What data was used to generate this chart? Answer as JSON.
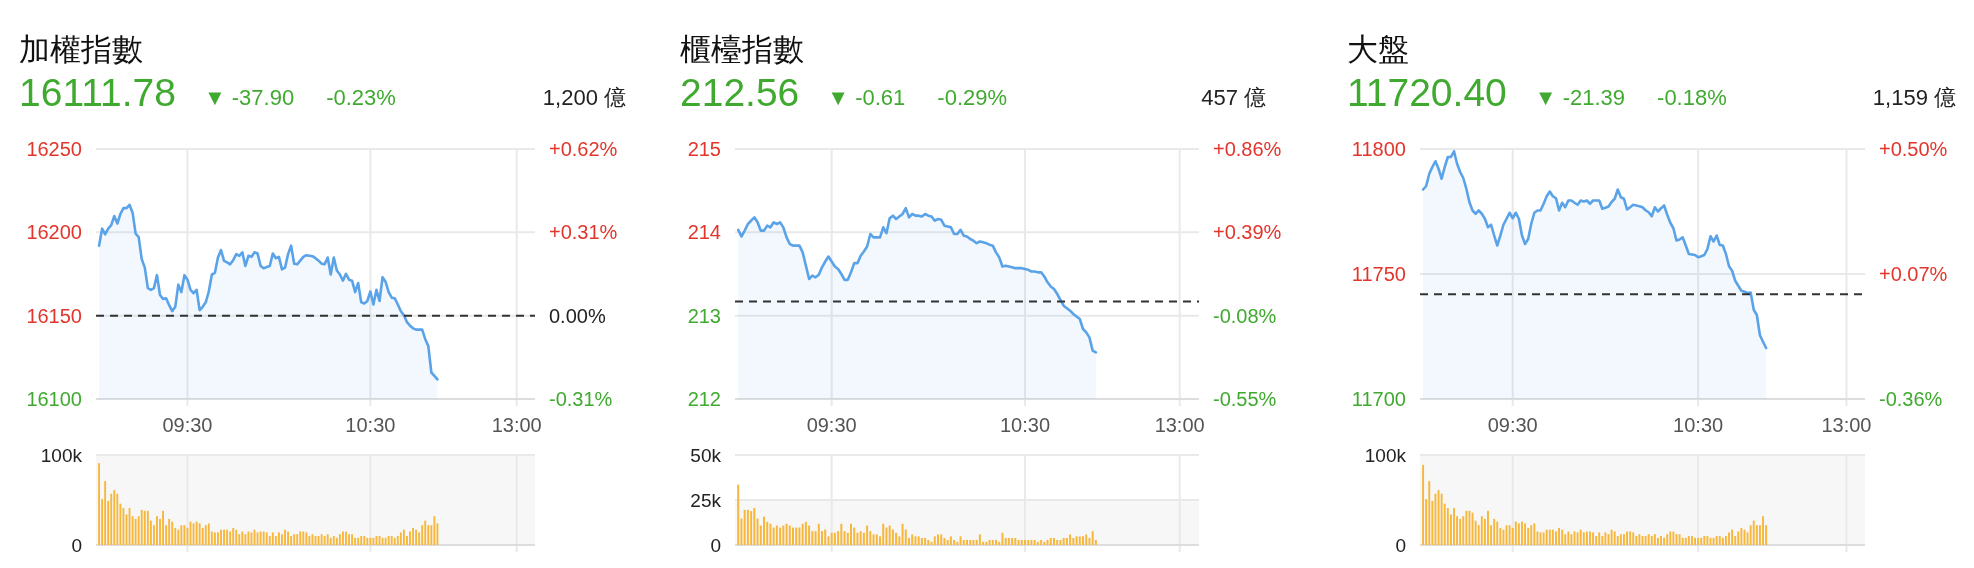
{
  "chart_data": [
    {
      "type": "area",
      "title": "加權指數",
      "annotations": [
        "16111.78",
        "▼ -37.90",
        "-0.23%",
        "1,200 億"
      ],
      "categories": [
        null,
        null,
        null,
        null,
        null,
        null,
        null,
        null,
        null,
        null,
        null,
        null,
        null,
        null,
        null,
        null,
        null,
        null,
        null,
        null,
        null,
        null,
        null,
        null,
        null,
        null,
        null,
        null,
        null,
        null,
        "09:30",
        null,
        null,
        null,
        null,
        null,
        null,
        null,
        null,
        null,
        null,
        null,
        null,
        null,
        null,
        null,
        null,
        null,
        null,
        null,
        null,
        null,
        null,
        null,
        null,
        null,
        null,
        null,
        null,
        null,
        null,
        null,
        null,
        null,
        null,
        null,
        null,
        null,
        null,
        null,
        null,
        null,
        null,
        null,
        null,
        null,
        null,
        null,
        null,
        null,
        null,
        null,
        null,
        null,
        null,
        null,
        null,
        null,
        null,
        null,
        "10:30",
        null,
        null,
        null,
        null,
        null,
        null,
        null,
        null,
        null,
        null,
        null,
        null,
        null,
        null,
        null,
        null,
        null,
        null,
        null,
        null,
        null,
        null,
        null,
        null,
        null,
        null,
        null,
        null,
        null,
        null,
        null,
        null,
        null,
        null,
        null,
        null,
        null,
        null,
        null,
        null,
        null,
        null,
        null,
        null,
        null,
        null,
        null,
        "13:00",
        null,
        null,
        null,
        null,
        null,
        null
      ],
      "values": [
        null,
        16192.0,
        16202.2,
        16198.8,
        16202.2,
        16204.3,
        16209.8,
        16205.3,
        16211.0,
        16214.5,
        16214.5,
        16216.5,
        16211.8,
        16199.2,
        16197.1,
        16183.9,
        16178.8,
        16166.5,
        16165.5,
        16166.5,
        16174.3,
        16162.4,
        16160.0,
        16160.4,
        16156.3,
        16152.7,
        16155.3,
        16168.6,
        16164.1,
        16174.3,
        16171.6,
        16165.5,
        16163.5,
        16165.5,
        16153.3,
        16155.3,
        16158.0,
        16164.5,
        16174.7,
        16175.7,
        16184.9,
        16189.4,
        16182.9,
        16182.0,
        16180.8,
        16183.3,
        16186.9,
        16185.9,
        16188.0,
        16179.8,
        16185.9,
        16185.3,
        16188.0,
        16187.3,
        16179.8,
        16178.4,
        16179.2,
        16179.8,
        16187.3,
        16184.5,
        16185.3,
        16177.8,
        16178.8,
        16186.9,
        16192.0,
        16181.2,
        16180.8,
        16183.0,
        16185.3,
        16186.3,
        16186.0,
        16185.7,
        16184.5,
        16183.0,
        16181.2,
        16180.8,
        16184.9,
        16174.7,
        16184.9,
        16177.1,
        16174.7,
        16171.0,
        16175.1,
        16171.6,
        16171.0,
        16164.1,
        16169.6,
        16158.0,
        16157.3,
        16158.8,
        16164.5,
        16156.7,
        16165.5,
        16158.8,
        16173.1,
        16170.2,
        16164.1,
        16160.8,
        16160.4,
        16156.7,
        16152.7,
        16150.2,
        16146.1,
        16144.0,
        16142.4,
        16141.6,
        16141.6,
        16141.6,
        16135.9,
        16131.8,
        16115.9,
        16113.9,
        16111.8,
        null,
        null,
        null,
        null,
        null,
        null,
        null,
        null,
        null,
        null,
        null,
        null,
        null,
        null,
        null,
        null,
        null,
        null,
        null,
        null,
        null,
        null,
        null,
        null,
        null,
        null,
        null,
        null,
        null,
        null,
        null,
        null
      ],
      "color": "#5ba3e8",
      "ylim": [
        16100,
        16250
      ],
      "yticks": [
        16100,
        16150,
        16200,
        16250
      ],
      "y2lim": [
        -0.31,
        0.62
      ],
      "y2ticks": [
        {
          "value": -0.31,
          "label": "-0.31%"
        },
        {
          "value": 0,
          "label": "0.00%"
        },
        {
          "value": 0.31,
          "label": "+0.31%"
        },
        {
          "value": 0.62,
          "label": "+0.62%"
        }
      ],
      "ref_lines": [
        {
          "axis": "y2",
          "value": 0,
          "color": "#333333",
          "line_style": "dashed"
        }
      ],
      "grid": true
    },
    {
      "type": "bar",
      "categories": [
        null,
        null,
        null,
        null,
        null,
        null,
        null,
        null,
        null,
        null,
        null,
        null,
        null,
        null,
        null,
        null,
        null,
        null,
        null,
        null,
        null,
        null,
        null,
        null,
        null,
        null,
        null,
        null,
        null,
        null,
        null,
        null,
        null,
        null,
        null,
        null,
        null,
        null,
        null,
        null,
        null,
        null,
        null,
        null,
        null,
        null,
        null,
        null,
        null,
        null,
        null,
        null,
        null,
        null,
        null,
        null,
        null,
        null,
        null,
        null,
        null,
        null,
        null,
        null,
        null,
        null,
        null,
        null,
        null,
        null,
        null,
        null,
        null,
        null,
        null,
        null,
        null,
        null,
        null,
        null,
        null,
        null,
        null,
        null,
        null,
        null,
        null,
        null,
        null,
        null,
        null,
        null,
        null,
        null,
        null,
        null,
        null,
        null,
        null,
        null,
        null,
        null,
        null,
        null,
        null,
        null,
        null,
        null,
        null,
        null,
        null,
        null,
        null,
        null,
        null,
        null,
        null,
        null,
        null,
        null,
        null,
        null,
        null,
        null,
        null,
        null,
        null,
        null,
        null,
        null,
        null,
        null,
        null,
        null,
        null,
        null,
        null,
        null,
        null,
        null,
        null,
        null,
        null,
        null,
        null
      ],
      "values": [
        null,
        91000,
        51000,
        71000,
        49000,
        57000,
        61000,
        57000,
        46000,
        41000,
        34000,
        41000,
        32000,
        29000,
        32000,
        39000,
        38000,
        38000,
        27000,
        22000,
        32000,
        29000,
        38000,
        22000,
        29000,
        26000,
        19000,
        17000,
        22000,
        22000,
        19000,
        26000,
        24000,
        26000,
        24000,
        19000,
        22000,
        24000,
        15000,
        14000,
        14000,
        17000,
        17000,
        17000,
        15000,
        19000,
        17000,
        12000,
        15000,
        12000,
        15000,
        14000,
        17000,
        14000,
        15000,
        15000,
        14000,
        10000,
        14000,
        10000,
        14000,
        12000,
        17000,
        15000,
        10000,
        12000,
        12000,
        15000,
        15000,
        14000,
        10000,
        12000,
        10000,
        10000,
        12000,
        10000,
        12000,
        8000,
        10000,
        8000,
        12000,
        15000,
        15000,
        12000,
        12000,
        8000,
        8000,
        10000,
        10000,
        8000,
        8000,
        8000,
        10000,
        10000,
        8000,
        8000,
        10000,
        10000,
        8000,
        10000,
        14000,
        17000,
        10000,
        15000,
        19000,
        17000,
        14000,
        22000,
        27000,
        22000,
        22000,
        32000,
        24000,
        null,
        null,
        null,
        null,
        null,
        null,
        null,
        null,
        null,
        null,
        null,
        null,
        null,
        null,
        null,
        null,
        null,
        null,
        null,
        null,
        null,
        null,
        null,
        null,
        null,
        null,
        null,
        null,
        null,
        null,
        null,
        null
      ],
      "color": "#f6b73c",
      "ylim": [
        0,
        100000
      ],
      "yticks": [
        0,
        {
          "value": 100000,
          "label": "100k"
        }
      ],
      "bands": [
        {
          "axis": "y",
          "from": 0,
          "to": 100000,
          "color": "#f7f7f7"
        }
      ],
      "grid": true
    },
    {
      "type": "area",
      "title": "櫃檯指數",
      "annotations": [
        "212.56",
        "▼ -0.61",
        "-0.29%",
        "457 億"
      ],
      "categories": [
        null,
        null,
        null,
        null,
        null,
        null,
        null,
        null,
        null,
        null,
        null,
        null,
        null,
        null,
        null,
        null,
        null,
        null,
        null,
        null,
        null,
        null,
        null,
        null,
        null,
        null,
        null,
        null,
        null,
        null,
        "09:30",
        null,
        null,
        null,
        null,
        null,
        null,
        null,
        null,
        null,
        null,
        null,
        null,
        null,
        null,
        null,
        null,
        null,
        null,
        null,
        null,
        null,
        null,
        null,
        null,
        null,
        null,
        null,
        null,
        null,
        null,
        null,
        null,
        null,
        null,
        null,
        null,
        null,
        null,
        null,
        null,
        null,
        null,
        null,
        null,
        null,
        null,
        null,
        null,
        null,
        null,
        null,
        null,
        null,
        null,
        null,
        null,
        null,
        null,
        null,
        "10:30",
        null,
        null,
        null,
        null,
        null,
        null,
        null,
        null,
        null,
        null,
        null,
        null,
        null,
        null,
        null,
        null,
        null,
        null,
        null,
        null,
        null,
        null,
        null,
        null,
        null,
        null,
        null,
        null,
        null,
        null,
        null,
        null,
        null,
        null,
        null,
        null,
        null,
        null,
        null,
        null,
        null,
        null,
        null,
        null,
        null,
        null,
        null,
        "13:00",
        null,
        null,
        null,
        null,
        null,
        null
      ],
      "values": [
        null,
        214.03,
        213.95,
        214.02,
        214.1,
        214.14,
        214.18,
        214.12,
        214.02,
        214.02,
        214.08,
        214.06,
        214.12,
        214.1,
        214.12,
        214.06,
        213.94,
        213.86,
        213.84,
        213.84,
        213.84,
        213.76,
        213.6,
        213.44,
        213.48,
        213.46,
        213.49,
        213.58,
        213.65,
        213.71,
        213.65,
        213.59,
        213.56,
        213.5,
        213.43,
        213.43,
        213.52,
        213.63,
        213.63,
        213.72,
        213.77,
        213.83,
        213.98,
        213.94,
        213.94,
        213.94,
        214.06,
        213.99,
        214.17,
        214.2,
        214.16,
        214.19,
        214.22,
        214.29,
        214.18,
        214.22,
        214.2,
        214.2,
        214.19,
        214.22,
        214.2,
        214.19,
        214.14,
        214.16,
        214.15,
        214.08,
        214.07,
        214.06,
        213.98,
        213.98,
        214.03,
        213.96,
        213.95,
        213.92,
        213.9,
        213.87,
        213.89,
        213.88,
        213.87,
        213.85,
        213.84,
        213.76,
        213.7,
        213.59,
        213.6,
        213.59,
        213.58,
        213.57,
        213.57,
        213.57,
        213.56,
        213.55,
        213.53,
        213.53,
        213.52,
        213.52,
        213.47,
        213.4,
        213.35,
        213.32,
        213.26,
        213.19,
        213.12,
        213.09,
        213.06,
        213.02,
        212.99,
        212.96,
        212.84,
        212.8,
        212.74,
        212.58,
        212.56,
        null,
        null,
        null,
        null,
        null,
        null,
        null,
        null,
        null,
        null,
        null,
        null,
        null,
        null,
        null,
        null,
        null,
        null,
        null,
        null,
        null,
        null,
        null,
        null,
        null,
        null,
        null,
        null,
        null,
        null,
        null,
        null
      ],
      "color": "#5ba3e8",
      "ylim": [
        212,
        215
      ],
      "yticks": [
        212,
        213,
        214,
        215
      ],
      "y2lim": [
        -0.55,
        0.86
      ],
      "y2ticks": [
        {
          "value": -0.55,
          "label": "-0.55%"
        },
        {
          "value": -0.08,
          "label": "-0.08%"
        },
        {
          "value": 0.39,
          "label": "+0.39%"
        },
        {
          "value": 0.86,
          "label": "+0.86%"
        }
      ],
      "ref_lines": [
        {
          "axis": "y2",
          "value": 0,
          "color": "#333333",
          "line_style": "dashed"
        }
      ],
      "grid": true
    },
    {
      "type": "bar",
      "categories": [
        null,
        null,
        null,
        null,
        null,
        null,
        null,
        null,
        null,
        null,
        null,
        null,
        null,
        null,
        null,
        null,
        null,
        null,
        null,
        null,
        null,
        null,
        null,
        null,
        null,
        null,
        null,
        null,
        null,
        null,
        null,
        null,
        null,
        null,
        null,
        null,
        null,
        null,
        null,
        null,
        null,
        null,
        null,
        null,
        null,
        null,
        null,
        null,
        null,
        null,
        null,
        null,
        null,
        null,
        null,
        null,
        null,
        null,
        null,
        null,
        null,
        null,
        null,
        null,
        null,
        null,
        null,
        null,
        null,
        null,
        null,
        null,
        null,
        null,
        null,
        null,
        null,
        null,
        null,
        null,
        null,
        null,
        null,
        null,
        null,
        null,
        null,
        null,
        null,
        null,
        null,
        null,
        null,
        null,
        null,
        null,
        null,
        null,
        null,
        null,
        null,
        null,
        null,
        null,
        null,
        null,
        null,
        null,
        null,
        null,
        null,
        null,
        null,
        null,
        null,
        null,
        null,
        null,
        null,
        null,
        null,
        null,
        null,
        null,
        null,
        null,
        null,
        null,
        null,
        null,
        null,
        null,
        null,
        null,
        null,
        null,
        null,
        null,
        null,
        null,
        null,
        null,
        null,
        null,
        null
      ],
      "values": [
        null,
        33500,
        14700,
        19500,
        19500,
        18800,
        20600,
        14700,
        10800,
        15800,
        12900,
        11800,
        9700,
        10800,
        9700,
        10800,
        11800,
        10800,
        9700,
        9700,
        9700,
        11800,
        12900,
        10800,
        7700,
        7700,
        11800,
        7700,
        8600,
        4800,
        6800,
        6800,
        7700,
        11800,
        7700,
        6800,
        11800,
        9700,
        6800,
        7700,
        6800,
        10800,
        7700,
        5900,
        5900,
        4800,
        11800,
        9700,
        10800,
        8600,
        6800,
        4800,
        11800,
        8600,
        3900,
        5900,
        4800,
        4800,
        3900,
        3900,
        2800,
        1800,
        4800,
        5900,
        5900,
        3900,
        2800,
        4800,
        2800,
        1800,
        4800,
        2800,
        2800,
        2800,
        2800,
        2800,
        5900,
        1800,
        1800,
        2800,
        2800,
        2800,
        1800,
        6800,
        3900,
        3900,
        3900,
        3900,
        2800,
        2800,
        2800,
        2800,
        2800,
        2800,
        1800,
        2800,
        1800,
        2800,
        3900,
        3900,
        2800,
        2800,
        3900,
        3900,
        5900,
        3900,
        4800,
        4800,
        4800,
        5900,
        3900,
        7700,
        2800,
        null,
        null,
        null,
        null,
        null,
        null,
        null,
        null,
        null,
        null,
        null,
        null,
        null,
        null,
        null,
        null,
        null,
        null,
        null,
        null,
        null,
        null,
        null,
        null,
        null,
        null,
        null,
        null,
        null,
        null,
        null,
        null
      ],
      "color": "#f6b73c",
      "ylim": [
        0,
        50000
      ],
      "yticks": [
        0,
        {
          "value": 25000,
          "label": "25k"
        },
        {
          "value": 50000,
          "label": "50k"
        }
      ],
      "bands": [
        {
          "axis": "y",
          "from": 0,
          "to": 25000,
          "color": "#f7f7f7"
        }
      ],
      "grid": true
    },
    {
      "type": "area",
      "title": "大盤",
      "annotations": [
        "11720.40",
        "▼ -21.39",
        "-0.18%",
        "1,159 億"
      ],
      "categories": [
        null,
        null,
        null,
        null,
        null,
        null,
        null,
        null,
        null,
        null,
        null,
        null,
        null,
        null,
        null,
        null,
        null,
        null,
        null,
        null,
        null,
        null,
        null,
        null,
        null,
        null,
        null,
        null,
        null,
        null,
        "09:30",
        null,
        null,
        null,
        null,
        null,
        null,
        null,
        null,
        null,
        null,
        null,
        null,
        null,
        null,
        null,
        null,
        null,
        null,
        null,
        null,
        null,
        null,
        null,
        null,
        null,
        null,
        null,
        null,
        null,
        null,
        null,
        null,
        null,
        null,
        null,
        null,
        null,
        null,
        null,
        null,
        null,
        null,
        null,
        null,
        null,
        null,
        null,
        null,
        null,
        null,
        null,
        null,
        null,
        null,
        null,
        null,
        null,
        null,
        null,
        "10:30",
        null,
        null,
        null,
        null,
        null,
        null,
        null,
        null,
        null,
        null,
        null,
        null,
        null,
        null,
        null,
        null,
        null,
        null,
        null,
        null,
        null,
        null,
        null,
        null,
        null,
        null,
        null,
        null,
        null,
        null,
        null,
        null,
        null,
        null,
        null,
        null,
        null,
        null,
        null,
        null,
        null,
        null,
        null,
        null,
        null,
        null,
        null,
        "13:00",
        null,
        null,
        null,
        null,
        null,
        null
      ],
      "values": [
        null,
        11783.8,
        11785.2,
        11790.1,
        11792.8,
        11795.1,
        11792.1,
        11788.1,
        11792.8,
        11796.8,
        11796.8,
        11799.1,
        11794.1,
        11790.8,
        11788.4,
        11784.1,
        11778.7,
        11775.4,
        11774.1,
        11775.4,
        11774.1,
        11772.1,
        11768.7,
        11769.7,
        11765.4,
        11761.4,
        11765.4,
        11769.7,
        11772.1,
        11774.5,
        11772.3,
        11774.5,
        11772.1,
        11765.4,
        11762.0,
        11764.0,
        11770.1,
        11774.5,
        11775.4,
        11775.4,
        11778.1,
        11781.1,
        11783.0,
        11781.1,
        11780.3,
        11775.4,
        11778.5,
        11776.7,
        11779.4,
        11779.4,
        11778.5,
        11777.7,
        11779.4,
        11779.0,
        11779.4,
        11778.1,
        11779.4,
        11779.4,
        11779.4,
        11776.1,
        11776.5,
        11777.0,
        11778.8,
        11780.1,
        11783.8,
        11780.7,
        11780.1,
        11775.8,
        11776.7,
        11777.7,
        11777.4,
        11777.1,
        11776.7,
        11775.5,
        11774.7,
        11773.1,
        11776.7,
        11775.0,
        11776.3,
        11777.4,
        11773.7,
        11770.5,
        11768.3,
        11763.4,
        11763.8,
        11764.7,
        11761.4,
        11758.0,
        11757.8,
        11757.6,
        11756.7,
        11757.1,
        11757.6,
        11760.0,
        11765.1,
        11763.0,
        11765.4,
        11761.6,
        11761.4,
        11758.0,
        11753.1,
        11751.3,
        11747.3,
        11745.3,
        11743.3,
        11742.9,
        11742.4,
        11742.6,
        11735.7,
        11733.6,
        11725.5,
        11722.9,
        11720.4,
        null,
        null,
        null,
        null,
        null,
        null,
        null,
        null,
        null,
        null,
        null,
        null,
        null,
        null,
        null,
        null,
        null,
        null,
        null,
        null,
        null,
        null,
        null,
        null,
        null,
        null,
        null,
        null,
        null,
        null,
        null,
        null
      ],
      "color": "#5ba3e8",
      "ylim": [
        11700,
        11800
      ],
      "yticks": [
        11700,
        11750,
        11800
      ],
      "y2lim": [
        -0.36,
        0.5
      ],
      "y2ticks": [
        {
          "value": -0.36,
          "label": "-0.36%"
        },
        {
          "value": 0.07,
          "label": "+0.07%"
        },
        {
          "value": 0.5,
          "label": "+0.50%"
        }
      ],
      "ref_lines": [
        {
          "axis": "y2",
          "value": 0,
          "color": "#333333",
          "line_style": "dashed"
        }
      ],
      "grid": true
    },
    {
      "type": "bar",
      "categories": [
        null,
        null,
        null,
        null,
        null,
        null,
        null,
        null,
        null,
        null,
        null,
        null,
        null,
        null,
        null,
        null,
        null,
        null,
        null,
        null,
        null,
        null,
        null,
        null,
        null,
        null,
        null,
        null,
        null,
        null,
        null,
        null,
        null,
        null,
        null,
        null,
        null,
        null,
        null,
        null,
        null,
        null,
        null,
        null,
        null,
        null,
        null,
        null,
        null,
        null,
        null,
        null,
        null,
        null,
        null,
        null,
        null,
        null,
        null,
        null,
        null,
        null,
        null,
        null,
        null,
        null,
        null,
        null,
        null,
        null,
        null,
        null,
        null,
        null,
        null,
        null,
        null,
        null,
        null,
        null,
        null,
        null,
        null,
        null,
        null,
        null,
        null,
        null,
        null,
        null,
        null,
        null,
        null,
        null,
        null,
        null,
        null,
        null,
        null,
        null,
        null,
        null,
        null,
        null,
        null,
        null,
        null,
        null,
        null,
        null,
        null,
        null,
        null,
        null,
        null,
        null,
        null,
        null,
        null,
        null,
        null,
        null,
        null,
        null,
        null,
        null,
        null,
        null,
        null,
        null,
        null,
        null,
        null,
        null,
        null,
        null,
        null,
        null,
        null,
        null,
        null,
        null,
        null,
        null,
        null
      ],
      "values": [
        null,
        89000,
        51000,
        71000,
        49000,
        57000,
        61000,
        57000,
        46000,
        41000,
        34000,
        41000,
        32000,
        29000,
        32000,
        38000,
        38000,
        36000,
        27000,
        22000,
        32000,
        29000,
        38000,
        22000,
        29000,
        26000,
        19000,
        17000,
        22000,
        22000,
        19000,
        26000,
        24000,
        26000,
        24000,
        19000,
        22000,
        24000,
        15000,
        14000,
        14000,
        17000,
        17000,
        17000,
        15000,
        19000,
        17000,
        12000,
        15000,
        12000,
        15000,
        14000,
        17000,
        14000,
        15000,
        15000,
        14000,
        10000,
        14000,
        10000,
        14000,
        12000,
        17000,
        15000,
        10000,
        12000,
        12000,
        15000,
        15000,
        14000,
        10000,
        12000,
        10000,
        10000,
        12000,
        10000,
        12000,
        8000,
        10000,
        8000,
        12000,
        15000,
        15000,
        12000,
        12000,
        8000,
        8000,
        10000,
        10000,
        8000,
        8000,
        8000,
        10000,
        10000,
        8000,
        8000,
        10000,
        10000,
        8000,
        10000,
        14000,
        17000,
        10000,
        15000,
        19000,
        17000,
        14000,
        22000,
        27000,
        22000,
        22000,
        32000,
        22000,
        null,
        null,
        null,
        null,
        null,
        null,
        null,
        null,
        null,
        null,
        null,
        null,
        null,
        null,
        null,
        null,
        null,
        null,
        null,
        null,
        null,
        null,
        null,
        null,
        null,
        null,
        null,
        null,
        null,
        null,
        null,
        null
      ],
      "color": "#f6b73c",
      "ylim": [
        0,
        100000
      ],
      "yticks": [
        0,
        {
          "value": 100000,
          "label": "100k"
        }
      ],
      "bands": [
        {
          "axis": "y",
          "from": 0,
          "to": 100000,
          "color": "#f7f7f7"
        }
      ],
      "grid": true
    }
  ]
}
